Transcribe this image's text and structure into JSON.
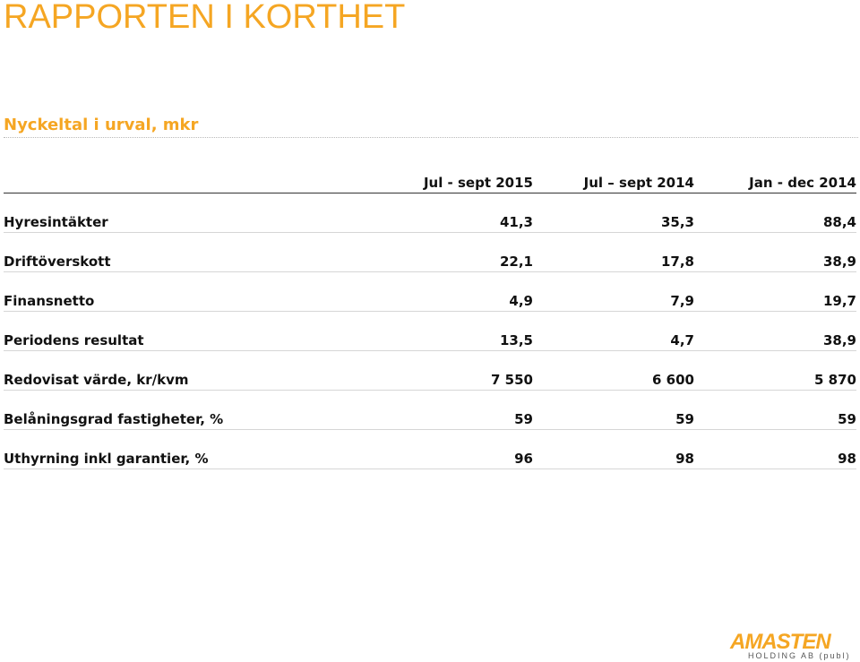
{
  "page": {
    "title": "RAPPORTEN I KORTHET",
    "subtitle": "Nyckeltal i urval, mkr"
  },
  "table": {
    "columns": [
      "",
      "Jul - sept 2015",
      "Jul – sept 2014",
      "Jan - dec 2014"
    ],
    "rows": [
      {
        "label": "Hyresintäkter",
        "v1": "41,3",
        "v2": "35,3",
        "v3": "88,4"
      },
      {
        "label": "Driftöverskott",
        "v1": "22,1",
        "v2": "17,8",
        "v3": "38,9"
      },
      {
        "label": "Finansnetto",
        "v1": "4,9",
        "v2": "7,9",
        "v3": "19,7"
      },
      {
        "label": "Periodens resultat",
        "v1": "13,5",
        "v2": "4,7",
        "v3": "38,9"
      },
      {
        "label": "Redovisat värde, kr/kvm",
        "v1": "7 550",
        "v2": "6 600",
        "v3": "5 870"
      },
      {
        "label": "Belåningsgrad fastigheter, %",
        "v1": "59",
        "v2": "59",
        "v3": "59"
      },
      {
        "label": "Uthyrning inkl garantier, %",
        "v1": "96",
        "v2": "98",
        "v3": "98"
      }
    ]
  },
  "logo": {
    "name": "AMASTEN",
    "sub": "HOLDING AB (publ)"
  },
  "colors": {
    "accent": "#f5a623",
    "text": "#111111"
  }
}
